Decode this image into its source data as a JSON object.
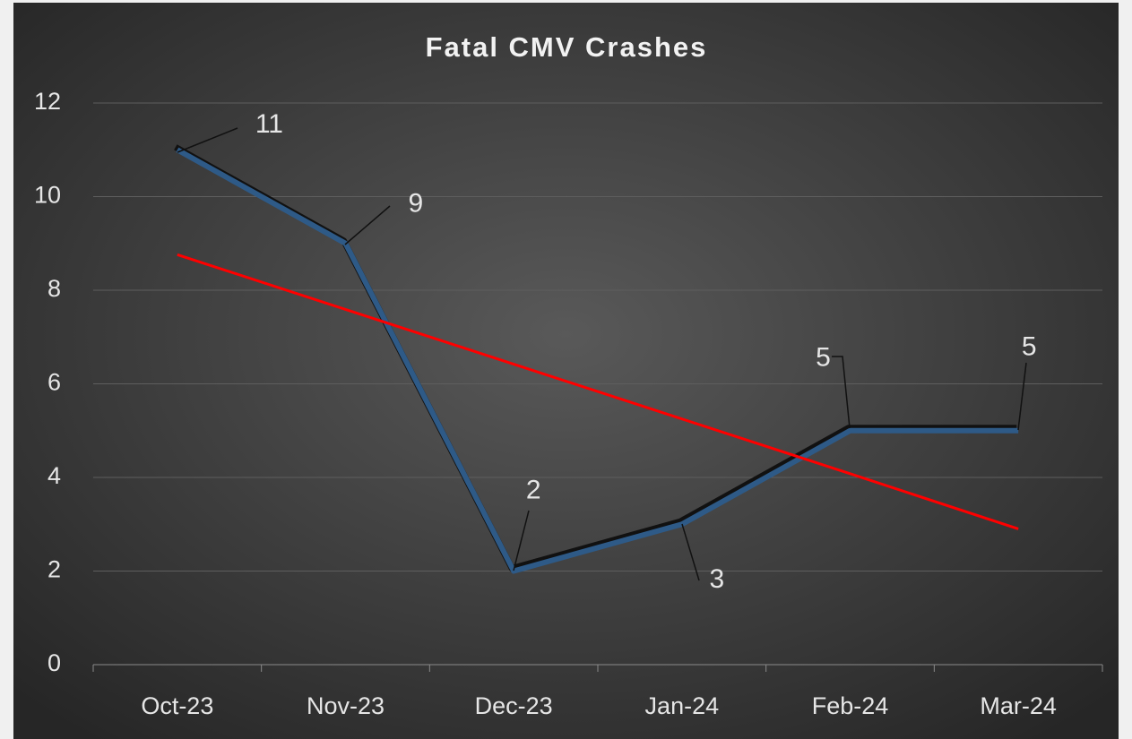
{
  "chart_data": {
    "type": "line",
    "title": "Fatal CMV Crashes",
    "categories": [
      "Oct-23",
      "Nov-23",
      "Dec-23",
      "Jan-24",
      "Feb-24",
      "Mar-24"
    ],
    "series": [
      {
        "color": "#2e5a87",
        "values": [
          11,
          9,
          2,
          3,
          5,
          5
        ]
      }
    ],
    "trendline": {
      "color": "#ff0000",
      "values": [
        8.76,
        7.59,
        6.42,
        5.25,
        4.08,
        2.9
      ]
    },
    "ylim": [
      0,
      12
    ],
    "yticks": [
      0,
      2,
      4,
      6,
      8,
      10,
      12
    ],
    "grid": true
  }
}
